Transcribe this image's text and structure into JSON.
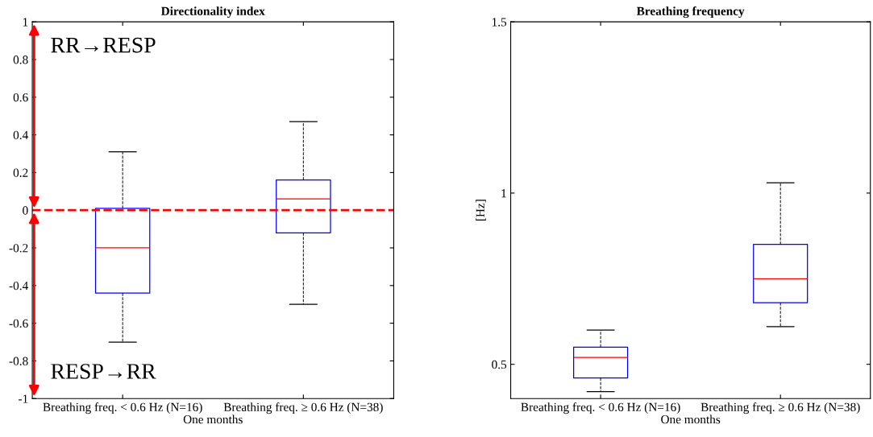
{
  "chart_data": [
    {
      "type": "box",
      "title": "Directionality index",
      "xlabel": "One months",
      "categories": [
        "Breathing freq. < 0.6 Hz (N=16)",
        "Breathing freq. ≥ 0.6 Hz (N=38)"
      ],
      "boxes": [
        {
          "low": -0.7,
          "q1": -0.44,
          "median": -0.2,
          "q3": 0.01,
          "high": 0.31
        },
        {
          "low": -0.5,
          "q1": -0.12,
          "median": 0.06,
          "q3": 0.16,
          "high": 0.47
        }
      ],
      "color": "#0000ff",
      "ylim": [
        -1,
        1
      ],
      "yticks": [
        -1,
        -0.8,
        -0.6,
        -0.4,
        -0.2,
        0,
        0.2,
        0.4,
        0.6,
        0.8,
        1
      ],
      "ref_lines": [
        {
          "axis": "y",
          "value": 0,
          "color": "#ff0000",
          "line_style": "dashed"
        }
      ],
      "annotations": [
        "RR→RESP",
        "RESP→RR"
      ],
      "grid": false,
      "legend": false
    },
    {
      "type": "box",
      "title": "Breathing frequency",
      "xlabel": "One months",
      "ylabel": "[Hz]",
      "categories": [
        "Breathing freq. < 0.6 Hz (N=16)",
        "Breathing freq. ≥ 0.6 Hz (N=38)"
      ],
      "boxes": [
        {
          "low": 0.42,
          "q1": 0.46,
          "median": 0.52,
          "q3": 0.55,
          "high": 0.6
        },
        {
          "low": 0.61,
          "q1": 0.68,
          "median": 0.75,
          "q3": 0.85,
          "high": 1.03
        }
      ],
      "color": "#0000ff",
      "ylim": [
        0.4,
        1.5
      ],
      "yticks": [
        0.5,
        1,
        1.5
      ],
      "grid": false,
      "legend": false
    }
  ]
}
